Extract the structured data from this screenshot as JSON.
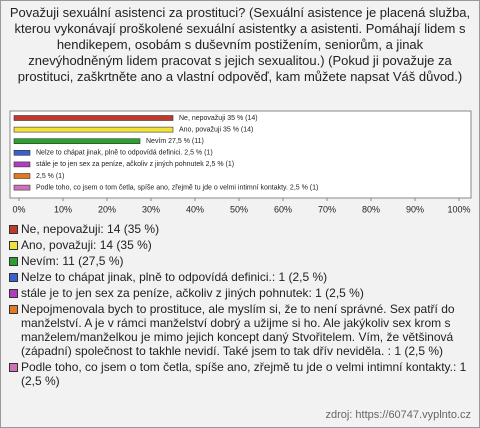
{
  "chart_data": {
    "type": "bar",
    "title": "Považuji sexuální asistenci za prostituci? (Sexuální asistence je placená služba, kterou vykonávají proškolené sexuální asistentky a asistenti. Pomáhají lidem s hendikepem, osobám s duševním postižením, seniorům, a jinak znevýhodněným lidem pracovat s jejich sexualitou.) (Pokud ji považuje za prostituci, zaškrtněte ano a vlastní odpověď, kam můžete napsat Váš důvod.)",
    "categories": [
      "Ne, nepovažuji",
      "Ano, považuji",
      "Nevím",
      "Nelze to chápat jinak, plně to odpovídá definici.",
      "stále je to jen sex za peníze, ačkoliv z jiných pohnutek",
      "Nepojmenovala",
      "Podle toho, co jsem o tom četla, spíše ano, zřejmě tu jde o velmi intimní kontakty."
    ],
    "values": [
      35,
      35,
      27.5,
      2.5,
      2.5,
      2.5,
      2.5
    ],
    "value_labels": [
      "Ne, nepovažuji 35 % (14)",
      "Ano, považuji 35 % (14)",
      "Nevím 27,5 % (11)",
      "Nelze to chápat jinak, plně to odpovídá definici. 2,5 % (1)",
      "stále je to jen sex za peníze, ačkoliv z jiných pohnutek 2,5 % (1)",
      "2,5 % (1)",
      "Podle toho, co jsem o tom četla, spíše ano, zřejmě tu jde o velmi intimní kontakty. 2,5 % (1)"
    ],
    "colors": [
      "#c0392b",
      "#f2e33a",
      "#2ca02c",
      "#3a5fd0",
      "#b03cc0",
      "#e07a20",
      "#d070b8"
    ],
    "legend": [
      "Ne, nepovažuji: 14 (35 %)",
      "Ano, považuji: 14 (35 %)",
      "Nevím: 11 (27,5 %)",
      "Nelze to chápat jinak, plně to odpovídá definici.: 1 (2,5 %)",
      "stále je to jen sex za peníze, ačkoliv z jiných pohnutek: 1 (2,5 %)",
      "Nepojmenovala bych to prostituce, ale myslím si, že to není správné. Sex patří do manželství. A je v rámci manželství dobrý a užijme si ho. Ale jakýkoliv sex krom s manželem/manželkou je mimo jejich koncept daný Stvořitelem. Vím, že většinová (západní) společnost to takhle nevidí. Také jsem to tak dřív neviděla. : 1 (2,5 %)",
      "Podle toho, co jsem o tom četla, spíše ano, zřejmě tu jde o velmi intimní kontakty.: 1 (2,5 %)"
    ],
    "xlim": [
      0,
      100
    ],
    "xticks": [
      {
        "value": 0,
        "label": "0%"
      },
      {
        "value": 10,
        "label": "10%"
      },
      {
        "value": 20,
        "label": "20%"
      },
      {
        "value": 30,
        "label": "30%"
      },
      {
        "value": 40,
        "label": "40%"
      },
      {
        "value": 50,
        "label": "50%"
      },
      {
        "value": 60,
        "label": "60%"
      },
      {
        "value": 70,
        "label": "70%"
      },
      {
        "value": 80,
        "label": "80%"
      },
      {
        "value": 90,
        "label": "90%"
      },
      {
        "value": 100,
        "label": "100%"
      }
    ],
    "source": "zdroj: https://60747.vyplnto.cz"
  }
}
